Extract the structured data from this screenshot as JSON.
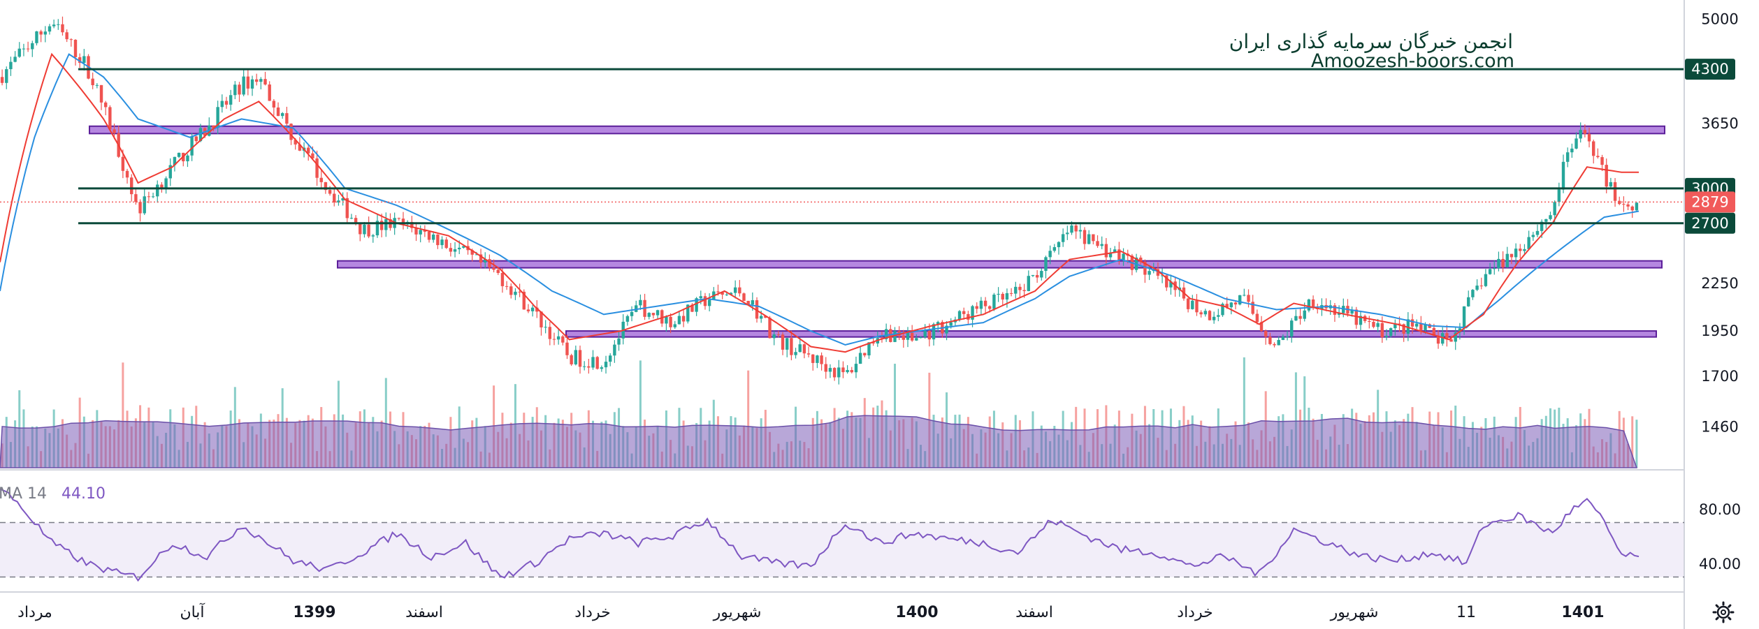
{
  "watermark": {
    "line1": "انجمن خبرگان سرمایه گذاری ایران",
    "line2": "Amoozesh-boors.com"
  },
  "colors": {
    "level_line": "#0b4a3a",
    "zone_fill": "#9c5fd6",
    "zone_stroke": "#5c1f9a",
    "ma_fast": "#ef3b33",
    "ma_slow": "#2a8fe0",
    "up_candle": "#26a69a",
    "down_candle": "#ef5350",
    "volume_area": "#7e5fb8",
    "rsi_line": "#7e57c2",
    "last_price": "#f15a5a"
  },
  "chart_data": {
    "type": "candlestick",
    "price_axis": {
      "ticks": [
        5000,
        3650,
        2250,
        1950,
        1700,
        1460
      ],
      "tick_labels": [
        "5000",
        "3650",
        "2250",
        "1950",
        "1700",
        "1460"
      ],
      "scale": "log",
      "range": [
        1290,
        5300
      ]
    },
    "time_axis": {
      "labels": [
        {
          "text": "مرداد",
          "bold": false
        },
        {
          "text": "آبان",
          "bold": false
        },
        {
          "text": "1399",
          "bold": true
        },
        {
          "text": "اسفند",
          "bold": false
        },
        {
          "text": "خرداد",
          "bold": false
        },
        {
          "text": "شهریور",
          "bold": false
        },
        {
          "text": "1400",
          "bold": true
        },
        {
          "text": "اسفند",
          "bold": false
        },
        {
          "text": "خرداد",
          "bold": false
        },
        {
          "text": "شهریور",
          "bold": false
        },
        {
          "text": "11",
          "bold": false
        },
        {
          "text": "1401",
          "bold": true
        }
      ]
    },
    "horizontal_levels": [
      {
        "value": 4300,
        "label": "4300"
      },
      {
        "value": 3000,
        "label": "3000"
      },
      {
        "value": 2700,
        "label": "2700"
      }
    ],
    "support_resistance_zones": [
      {
        "low": 3540,
        "high": 3620
      },
      {
        "low": 2360,
        "high": 2410
      },
      {
        "low": 1915,
        "high": 1950
      }
    ],
    "last_price": {
      "value": 2879,
      "label": "2879"
    },
    "price_path": [
      {
        "t": 0,
        "v": 4200
      },
      {
        "t": 3,
        "v": 4950
      },
      {
        "t": 5,
        "v": 4350
      },
      {
        "t": 7,
        "v": 3300
      },
      {
        "t": 8,
        "v": 2800
      },
      {
        "t": 10,
        "v": 3200
      },
      {
        "t": 12,
        "v": 3600
      },
      {
        "t": 14,
        "v": 4100
      },
      {
        "t": 15,
        "v": 4200
      },
      {
        "t": 17,
        "v": 3500
      },
      {
        "t": 19,
        "v": 3000
      },
      {
        "t": 21,
        "v": 2650
      },
      {
        "t": 23,
        "v": 2700
      },
      {
        "t": 25,
        "v": 2600
      },
      {
        "t": 27,
        "v": 2450
      },
      {
        "t": 29,
        "v": 2300
      },
      {
        "t": 31,
        "v": 2050
      },
      {
        "t": 33,
        "v": 1800
      },
      {
        "t": 35,
        "v": 1780
      },
      {
        "t": 37,
        "v": 2100
      },
      {
        "t": 39,
        "v": 2000
      },
      {
        "t": 41,
        "v": 2150
      },
      {
        "t": 43,
        "v": 2200
      },
      {
        "t": 45,
        "v": 1900
      },
      {
        "t": 47,
        "v": 1800
      },
      {
        "t": 49,
        "v": 1700
      },
      {
        "t": 51,
        "v": 1950
      },
      {
        "t": 53,
        "v": 1900
      },
      {
        "t": 55,
        "v": 2000
      },
      {
        "t": 57,
        "v": 2100
      },
      {
        "t": 59,
        "v": 2180
      },
      {
        "t": 61,
        "v": 2450
      },
      {
        "t": 62,
        "v": 2650
      },
      {
        "t": 64,
        "v": 2500
      },
      {
        "t": 66,
        "v": 2380
      },
      {
        "t": 68,
        "v": 2200
      },
      {
        "t": 70,
        "v": 2050
      },
      {
        "t": 72,
        "v": 2150
      },
      {
        "t": 74,
        "v": 1850
      },
      {
        "t": 76,
        "v": 2150
      },
      {
        "t": 78,
        "v": 2050
      },
      {
        "t": 80,
        "v": 1950
      },
      {
        "t": 82,
        "v": 1980
      },
      {
        "t": 84,
        "v": 1870
      },
      {
        "t": 86,
        "v": 2300
      },
      {
        "t": 88,
        "v": 2500
      },
      {
        "t": 90,
        "v": 2800
      },
      {
        "t": 91,
        "v": 3400
      },
      {
        "t": 92,
        "v": 3550
      },
      {
        "t": 93,
        "v": 3100
      },
      {
        "t": 94,
        "v": 2850
      },
      {
        "t": 95,
        "v": 2879
      }
    ],
    "ma_fast_path": [
      {
        "t": 0,
        "v": 2400
      },
      {
        "t": 3,
        "v": 4500
      },
      {
        "t": 6,
        "v": 3700
      },
      {
        "t": 8,
        "v": 3050
      },
      {
        "t": 10,
        "v": 3200
      },
      {
        "t": 13,
        "v": 3700
      },
      {
        "t": 15,
        "v": 3900
      },
      {
        "t": 18,
        "v": 3300
      },
      {
        "t": 20,
        "v": 2900
      },
      {
        "t": 23,
        "v": 2700
      },
      {
        "t": 26,
        "v": 2600
      },
      {
        "t": 29,
        "v": 2350
      },
      {
        "t": 31,
        "v": 2100
      },
      {
        "t": 33,
        "v": 1900
      },
      {
        "t": 36,
        "v": 1950
      },
      {
        "t": 39,
        "v": 2050
      },
      {
        "t": 42,
        "v": 2200
      },
      {
        "t": 45,
        "v": 2000
      },
      {
        "t": 47,
        "v": 1860
      },
      {
        "t": 49,
        "v": 1830
      },
      {
        "t": 51,
        "v": 1900
      },
      {
        "t": 54,
        "v": 1980
      },
      {
        "t": 57,
        "v": 2050
      },
      {
        "t": 60,
        "v": 2200
      },
      {
        "t": 62,
        "v": 2420
      },
      {
        "t": 65,
        "v": 2480
      },
      {
        "t": 67,
        "v": 2350
      },
      {
        "t": 69,
        "v": 2150
      },
      {
        "t": 71,
        "v": 2100
      },
      {
        "t": 73,
        "v": 1990
      },
      {
        "t": 75,
        "v": 2120
      },
      {
        "t": 78,
        "v": 2050
      },
      {
        "t": 81,
        "v": 1990
      },
      {
        "t": 84,
        "v": 1900
      },
      {
        "t": 86,
        "v": 2050
      },
      {
        "t": 88,
        "v": 2400
      },
      {
        "t": 90,
        "v": 2700
      },
      {
        "t": 92,
        "v": 3200
      },
      {
        "t": 94,
        "v": 3150
      },
      {
        "t": 95,
        "v": 3150
      }
    ],
    "ma_slow_path": [
      {
        "t": 0,
        "v": 2200
      },
      {
        "t": 2,
        "v": 3500
      },
      {
        "t": 4,
        "v": 4500
      },
      {
        "t": 6,
        "v": 4200
      },
      {
        "t": 8,
        "v": 3700
      },
      {
        "t": 11,
        "v": 3500
      },
      {
        "t": 14,
        "v": 3700
      },
      {
        "t": 17,
        "v": 3600
      },
      {
        "t": 20,
        "v": 3000
      },
      {
        "t": 23,
        "v": 2850
      },
      {
        "t": 26,
        "v": 2650
      },
      {
        "t": 29,
        "v": 2450
      },
      {
        "t": 32,
        "v": 2200
      },
      {
        "t": 35,
        "v": 2050
      },
      {
        "t": 38,
        "v": 2100
      },
      {
        "t": 41,
        "v": 2150
      },
      {
        "t": 44,
        "v": 2100
      },
      {
        "t": 47,
        "v": 1950
      },
      {
        "t": 49,
        "v": 1870
      },
      {
        "t": 51,
        "v": 1920
      },
      {
        "t": 54,
        "v": 1960
      },
      {
        "t": 57,
        "v": 2000
      },
      {
        "t": 60,
        "v": 2150
      },
      {
        "t": 62,
        "v": 2300
      },
      {
        "t": 65,
        "v": 2420
      },
      {
        "t": 68,
        "v": 2300
      },
      {
        "t": 71,
        "v": 2150
      },
      {
        "t": 74,
        "v": 2080
      },
      {
        "t": 77,
        "v": 2100
      },
      {
        "t": 80,
        "v": 2050
      },
      {
        "t": 83,
        "v": 1980
      },
      {
        "t": 85,
        "v": 1970
      },
      {
        "t": 87,
        "v": 2150
      },
      {
        "t": 89,
        "v": 2350
      },
      {
        "t": 91,
        "v": 2550
      },
      {
        "t": 93,
        "v": 2750
      },
      {
        "t": 95,
        "v": 2800
      }
    ],
    "rsi": {
      "label": "MA 14",
      "value_label": "44.10",
      "ticks": [
        80,
        40
      ],
      "tick_labels": [
        "80.00",
        "40.00"
      ],
      "band": [
        70,
        30
      ],
      "range": [
        20,
        100
      ],
      "path": [
        {
          "t": 0,
          "v": 95
        },
        {
          "t": 1,
          "v": 85
        },
        {
          "t": 3,
          "v": 55
        },
        {
          "t": 5,
          "v": 40
        },
        {
          "t": 7,
          "v": 32
        },
        {
          "t": 8,
          "v": 30
        },
        {
          "t": 10,
          "v": 55
        },
        {
          "t": 12,
          "v": 45
        },
        {
          "t": 14,
          "v": 68
        },
        {
          "t": 15,
          "v": 60
        },
        {
          "t": 17,
          "v": 42
        },
        {
          "t": 19,
          "v": 35
        },
        {
          "t": 21,
          "v": 48
        },
        {
          "t": 23,
          "v": 62
        },
        {
          "t": 25,
          "v": 45
        },
        {
          "t": 27,
          "v": 55
        },
        {
          "t": 29,
          "v": 30
        },
        {
          "t": 31,
          "v": 40
        },
        {
          "t": 33,
          "v": 58
        },
        {
          "t": 35,
          "v": 62
        },
        {
          "t": 37,
          "v": 55
        },
        {
          "t": 39,
          "v": 60
        },
        {
          "t": 41,
          "v": 72
        },
        {
          "t": 43,
          "v": 45
        },
        {
          "t": 45,
          "v": 40
        },
        {
          "t": 47,
          "v": 38
        },
        {
          "t": 49,
          "v": 70
        },
        {
          "t": 51,
          "v": 55
        },
        {
          "t": 53,
          "v": 62
        },
        {
          "t": 55,
          "v": 58
        },
        {
          "t": 57,
          "v": 55
        },
        {
          "t": 59,
          "v": 48
        },
        {
          "t": 61,
          "v": 72
        },
        {
          "t": 63,
          "v": 60
        },
        {
          "t": 65,
          "v": 50
        },
        {
          "t": 67,
          "v": 48
        },
        {
          "t": 69,
          "v": 38
        },
        {
          "t": 71,
          "v": 45
        },
        {
          "t": 73,
          "v": 32
        },
        {
          "t": 75,
          "v": 65
        },
        {
          "t": 77,
          "v": 55
        },
        {
          "t": 79,
          "v": 45
        },
        {
          "t": 81,
          "v": 42
        },
        {
          "t": 83,
          "v": 48
        },
        {
          "t": 85,
          "v": 40
        },
        {
          "t": 86,
          "v": 68
        },
        {
          "t": 88,
          "v": 75
        },
        {
          "t": 90,
          "v": 62
        },
        {
          "t": 91,
          "v": 78
        },
        {
          "t": 92,
          "v": 86
        },
        {
          "t": 93,
          "v": 70
        },
        {
          "t": 94,
          "v": 46
        },
        {
          "t": 95,
          "v": 44
        }
      ]
    }
  }
}
